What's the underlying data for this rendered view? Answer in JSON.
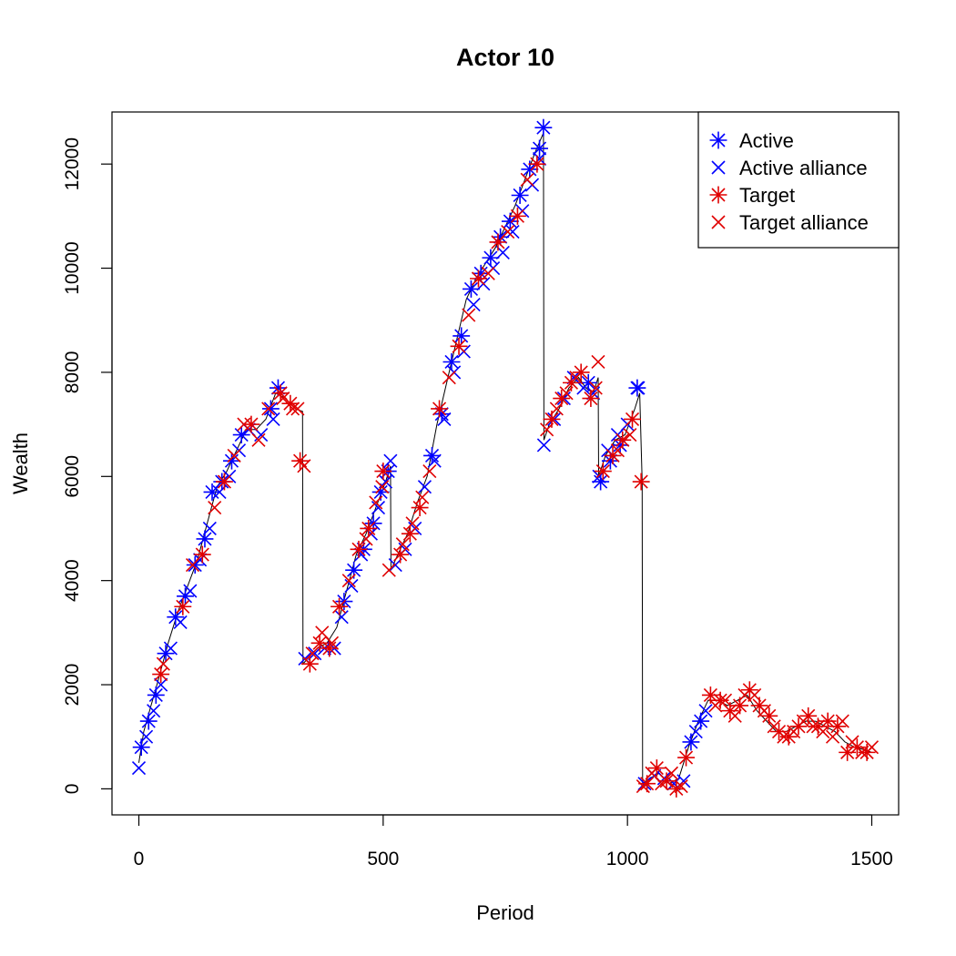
{
  "chart_data": {
    "type": "scatter",
    "title": "Actor 10",
    "xlabel": "Period",
    "ylabel": "Wealth",
    "xlim": [
      -55,
      1555
    ],
    "ylim": [
      -500,
      13000
    ],
    "xticks": [
      0,
      500,
      1000,
      1500
    ],
    "xtick_labels": [
      "0",
      "500",
      "1000",
      "1500"
    ],
    "yticks": [
      0,
      2000,
      4000,
      6000,
      8000,
      10000,
      12000
    ],
    "ytick_labels": [
      "0",
      "2000",
      "4000",
      "6000",
      "8000",
      "10000",
      "12000"
    ],
    "grid": false,
    "legend_position": "top-right",
    "colors": {
      "blue": "#0000ff",
      "red": "#e00000",
      "line": "#000000"
    },
    "legend": [
      {
        "label": "Active",
        "color": "#0000ff",
        "marker": "asterisk"
      },
      {
        "label": "Active alliance",
        "color": "#0000ff",
        "marker": "x"
      },
      {
        "label": "Target",
        "color": "#e00000",
        "marker": "asterisk"
      },
      {
        "label": "Target alliance",
        "color": "#e00000",
        "marker": "x"
      }
    ],
    "trajectory": {
      "x": [
        0,
        10,
        25,
        40,
        60,
        80,
        100,
        120,
        140,
        160,
        180,
        200,
        220,
        240,
        260,
        280,
        300,
        320,
        335,
        336,
        345,
        365,
        385,
        405,
        425,
        445,
        465,
        485,
        505,
        515,
        516,
        530,
        550,
        570,
        590,
        610,
        630,
        650,
        670,
        690,
        710,
        730,
        750,
        770,
        790,
        810,
        828,
        829,
        840,
        860,
        880,
        900,
        915,
        930,
        940,
        941,
        955,
        975,
        995,
        1015,
        1025,
        1030,
        1031,
        1045,
        1065,
        1085,
        1105,
        1125,
        1145,
        1165,
        1185,
        1205,
        1225,
        1245,
        1265,
        1285,
        1305,
        1325,
        1345,
        1365,
        1385,
        1405,
        1425,
        1445,
        1465,
        1485,
        1500
      ],
      "y": [
        500,
        1100,
        1600,
        2100,
        2800,
        3400,
        3900,
        4400,
        5100,
        5800,
        6100,
        6500,
        6900,
        6900,
        7100,
        7600,
        7500,
        7300,
        7250,
        2400,
        2500,
        2700,
        2800,
        3100,
        3800,
        4500,
        4900,
        5400,
        5900,
        6200,
        4200,
        4500,
        4900,
        5500,
        6000,
        7000,
        7800,
        8600,
        9400,
        9800,
        10100,
        10400,
        10800,
        11200,
        11700,
        12200,
        12600,
        6700,
        7000,
        7300,
        7700,
        7900,
        7700,
        7600,
        7900,
        6000,
        6400,
        6700,
        6800,
        7300,
        7600,
        5900,
        100,
        200,
        300,
        100,
        200,
        800,
        1300,
        1700,
        1700,
        1600,
        1700,
        1800,
        1500,
        1300,
        1100,
        1100,
        1200,
        1300,
        1300,
        1200,
        1100,
        900,
        800,
        750,
        700
      ]
    },
    "series": [
      {
        "name": "Active",
        "marker": "asterisk",
        "color": "#0000ff",
        "x": [
          5,
          20,
          35,
          55,
          75,
          95,
          115,
          135,
          150,
          170,
          190,
          210,
          270,
          285,
          420,
          440,
          460,
          480,
          495,
          510,
          600,
          620,
          640,
          660,
          680,
          700,
          720,
          740,
          760,
          780,
          800,
          820,
          828,
          920,
          945,
          965,
          985,
          1020,
          1130,
          1150
        ],
        "y": [
          800,
          1300,
          1800,
          2600,
          3300,
          3700,
          4300,
          4800,
          5700,
          5900,
          6300,
          6800,
          7300,
          7700,
          3600,
          4200,
          4600,
          5100,
          5700,
          6100,
          6400,
          7200,
          8200,
          8700,
          9600,
          9900,
          10200,
          10600,
          10900,
          11400,
          11900,
          12300,
          12700,
          7800,
          5900,
          6300,
          6600,
          7700,
          900,
          1300
        ]
      },
      {
        "name": "Active alliance",
        "marker": "x",
        "color": "#0000ff",
        "x": [
          0,
          15,
          30,
          45,
          65,
          85,
          105,
          125,
          145,
          165,
          185,
          205,
          225,
          250,
          275,
          340,
          360,
          380,
          400,
          415,
          435,
          455,
          475,
          490,
          505,
          515,
          525,
          545,
          565,
          585,
          605,
          625,
          645,
          665,
          685,
          705,
          725,
          745,
          765,
          785,
          805,
          820,
          829,
          850,
          870,
          890,
          910,
          930,
          942,
          960,
          980,
          1000,
          1022,
          1035,
          1055,
          1075,
          1095,
          1115,
          1140,
          1160
        ],
        "y": [
          400,
          1000,
          1500,
          2000,
          2700,
          3200,
          3800,
          4400,
          5000,
          5700,
          6000,
          6500,
          6900,
          6800,
          7100,
          2500,
          2600,
          2700,
          2700,
          3300,
          3900,
          4500,
          4900,
          5400,
          5900,
          6300,
          4300,
          4600,
          5000,
          5800,
          6300,
          7100,
          8000,
          8400,
          9300,
          9700,
          10000,
          10300,
          10700,
          11100,
          11600,
          12100,
          6600,
          7100,
          7500,
          7900,
          7700,
          7600,
          6000,
          6500,
          6800,
          7000,
          7700,
          100,
          250,
          200,
          100,
          150,
          1100,
          1500
        ]
      },
      {
        "name": "Target",
        "marker": "asterisk",
        "color": "#e00000",
        "x": [
          45,
          90,
          130,
          175,
          230,
          290,
          310,
          330,
          350,
          370,
          390,
          410,
          450,
          470,
          500,
          535,
          555,
          575,
          615,
          655,
          695,
          735,
          775,
          815,
          845,
          865,
          885,
          905,
          925,
          950,
          970,
          990,
          1010,
          1028,
          1040,
          1060,
          1080,
          1100,
          1120,
          1170,
          1190,
          1210,
          1230,
          1250,
          1270,
          1290,
          1310,
          1330,
          1350,
          1370,
          1390,
          1410,
          1430,
          1450,
          1470,
          1490
        ],
        "y": [
          2200,
          3500,
          4500,
          5900,
          7000,
          7600,
          7400,
          6300,
          2400,
          2800,
          2700,
          3500,
          4600,
          5000,
          6100,
          4500,
          4900,
          5400,
          7300,
          8500,
          9800,
          10500,
          11000,
          12000,
          7100,
          7500,
          7800,
          8000,
          7500,
          6100,
          6400,
          6700,
          7100,
          5900,
          100,
          400,
          150,
          0,
          600,
          1800,
          1700,
          1500,
          1600,
          1900,
          1600,
          1400,
          1100,
          1000,
          1200,
          1400,
          1200,
          1300,
          1200,
          700,
          800,
          700
        ]
      },
      {
        "name": "Target alliance",
        "marker": "x",
        "color": "#e00000",
        "x": [
          50,
          110,
          155,
          195,
          215,
          245,
          265,
          295,
          315,
          325,
          338,
          355,
          375,
          395,
          430,
          465,
          485,
          498,
          512,
          540,
          560,
          580,
          595,
          635,
          675,
          715,
          755,
          795,
          835,
          855,
          875,
          895,
          935,
          940,
          980,
          1005,
          1032,
          1050,
          1070,
          1090,
          1110,
          1180,
          1200,
          1220,
          1240,
          1260,
          1280,
          1300,
          1320,
          1340,
          1360,
          1380,
          1400,
          1420,
          1440,
          1460,
          1480,
          1500
        ],
        "y": [
          2400,
          4300,
          5400,
          6400,
          7000,
          6700,
          7300,
          7500,
          7300,
          7300,
          6200,
          2600,
          3000,
          2800,
          4000,
          4800,
          5500,
          5800,
          4200,
          4700,
          5100,
          5600,
          6100,
          7900,
          9100,
          9900,
          10700,
          11700,
          6900,
          7300,
          7600,
          7900,
          7700,
          8200,
          6500,
          6800,
          50,
          300,
          100,
          300,
          50,
          1600,
          1700,
          1400,
          1800,
          1800,
          1500,
          1200,
          1000,
          1100,
          1300,
          1200,
          1100,
          1000,
          1300,
          900,
          700,
          800
        ]
      }
    ]
  }
}
